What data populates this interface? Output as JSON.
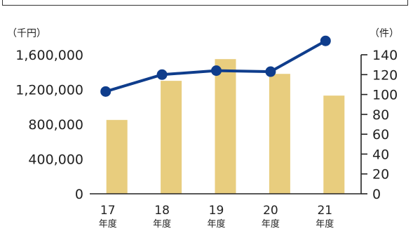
{
  "chart_data": {
    "type": "bar",
    "categories": [
      "17",
      "18",
      "19",
      "20",
      "21"
    ],
    "category_suffix": "年度",
    "series": [
      {
        "name": "",
        "type": "bar",
        "axis": "left",
        "values": [
          850000,
          1300000,
          1550000,
          1380000,
          1130000
        ]
      },
      {
        "name": "",
        "type": "line",
        "axis": "right",
        "values": [
          103,
          120,
          124,
          123,
          154
        ]
      }
    ],
    "left_axis": {
      "unit": "（千円）",
      "ylim": [
        0,
        1600000
      ],
      "tick_labels": [
        "0",
        "400,000",
        "800,000",
        "1,200,000",
        "1,600,000"
      ]
    },
    "right_axis": {
      "unit": "（件）",
      "ylim": [
        0,
        140
      ],
      "tick_labels": [
        "0",
        "20",
        "40",
        "60",
        "80",
        "100",
        "120",
        "140"
      ]
    },
    "grid": false,
    "colors": {
      "bar": "#e8cd7e",
      "line": "#0f3d8c",
      "axis": "#222222"
    }
  }
}
